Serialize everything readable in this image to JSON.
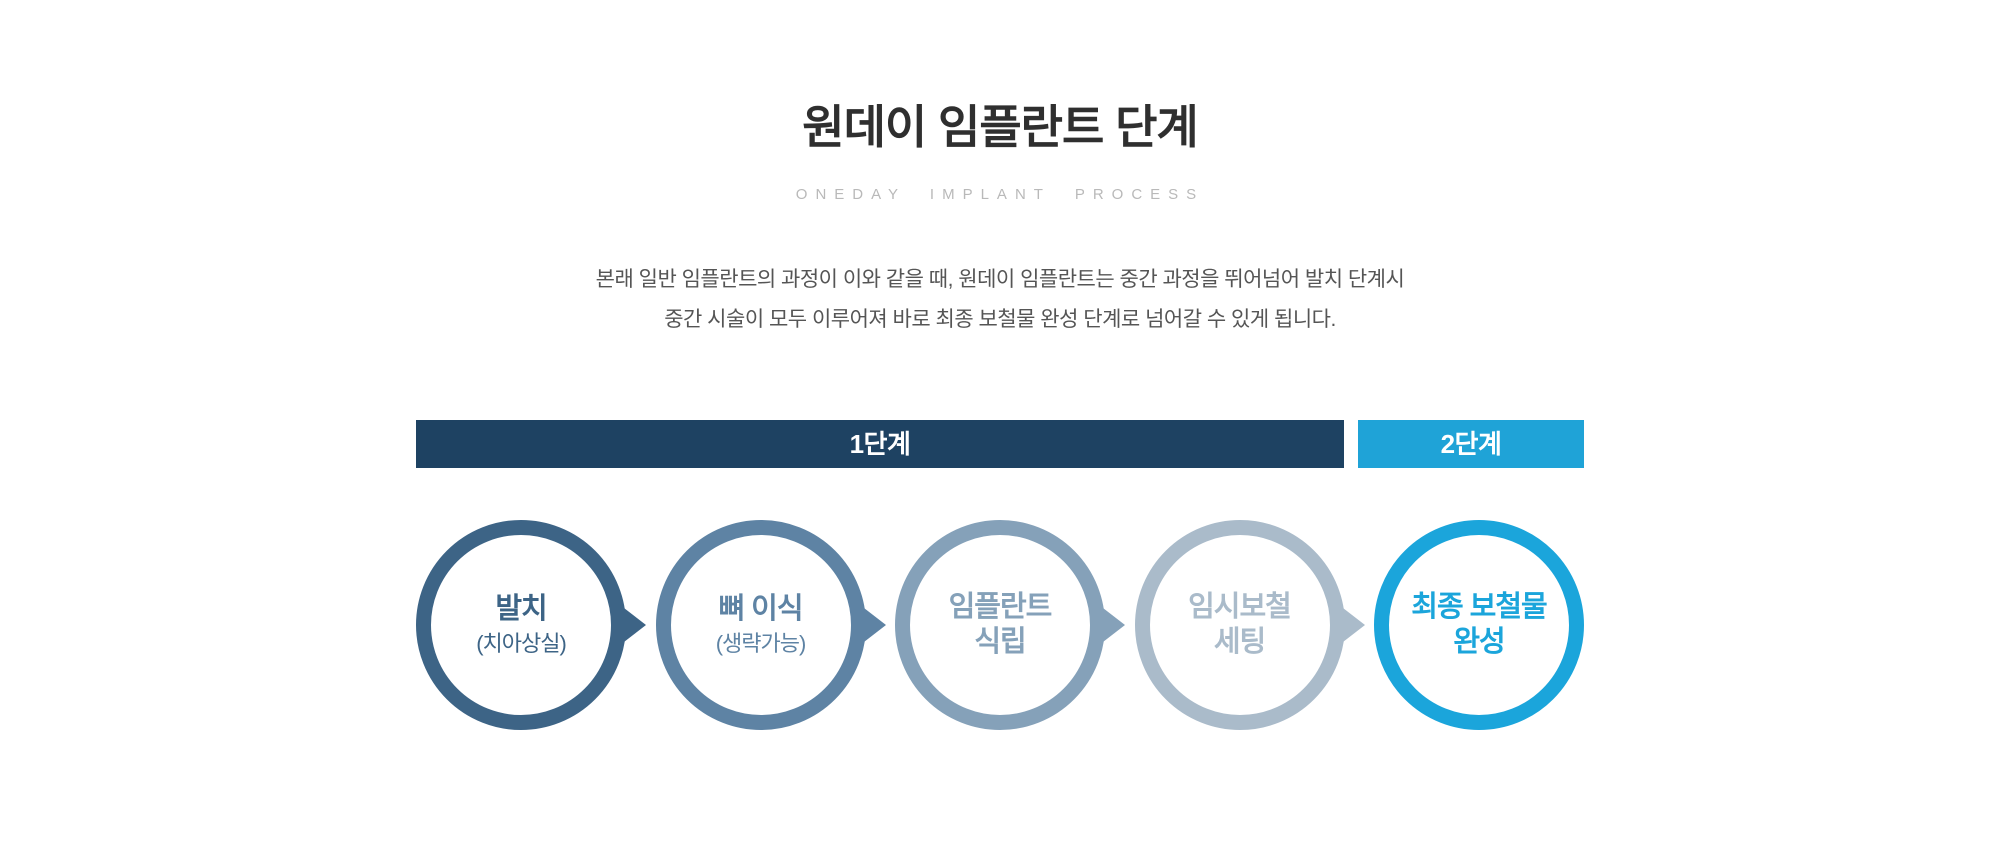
{
  "page": {
    "title": "원데이 임플란트 단계",
    "subtitle": "ONEDAY IMPLANT PROCESS",
    "description": {
      "line1": "본래 일반 임플란트의 과정이 이와 같을 때, 원데이 임플란트는 중간 과정을 뛰어넘어 발치 단계시",
      "line2": "중간 시술이 모두 이루어져 바로 최종 보철물 완성 단계로 넘어갈 수 있게 됩니다."
    },
    "colors": {
      "title_text": "#2f2f2f",
      "subtitle_text": "#b9b9b9",
      "body_text": "#555555"
    }
  },
  "stage_bars": {
    "stage1": {
      "label": "1단계",
      "color": "#1e4262"
    },
    "stage2": {
      "label": "2단계",
      "color": "#1fa3d7"
    }
  },
  "steps": {
    "items": [
      {
        "line1": "발치",
        "line2": "(치아상실)",
        "color": "#3d6486"
      },
      {
        "line1": "뼈 이식",
        "line2": "(생략가능)",
        "color": "#5e83a4"
      },
      {
        "line1": "임플란트",
        "line2": "식립",
        "color": "#85a1b9"
      },
      {
        "line1": "임시보철",
        "line2": "세팅",
        "color": "#aabbca"
      },
      {
        "line1": "최종 보철물",
        "line2": "완성",
        "color": "#1ba5db"
      }
    ]
  }
}
